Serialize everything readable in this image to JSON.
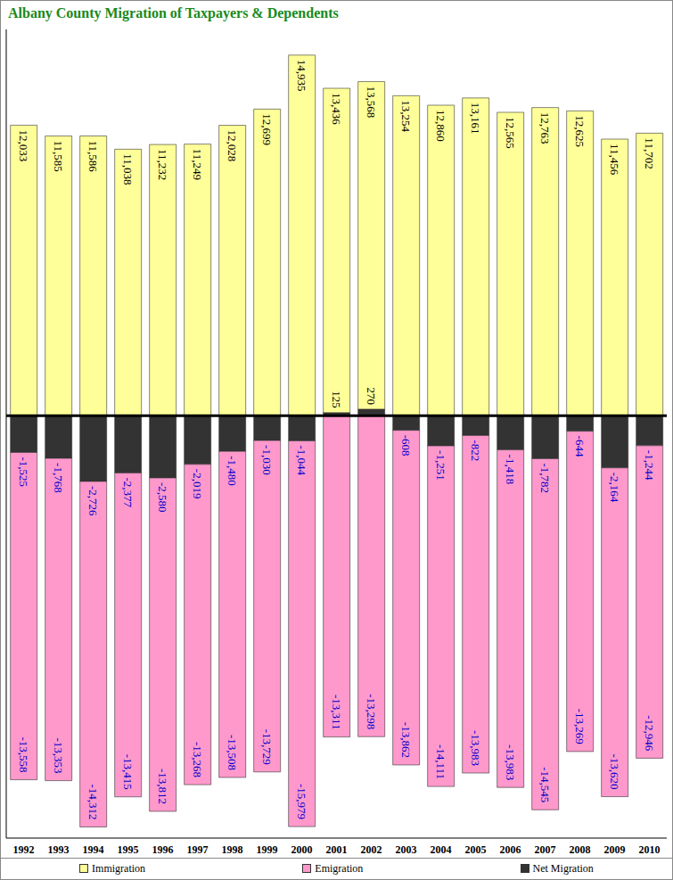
{
  "chart_data": {
    "type": "bar",
    "title": "Albany County Migration of Taxpayers & Dependents",
    "categories": [
      "1992",
      "1993",
      "1994",
      "1995",
      "1996",
      "1997",
      "1998",
      "1999",
      "2000",
      "2001",
      "2002",
      "2003",
      "2004",
      "2005",
      "2006",
      "2007",
      "2008",
      "2009",
      "2010"
    ],
    "series": [
      {
        "name": "Immigration",
        "color": "#ffff99",
        "values": [
          12033,
          11585,
          11586,
          11038,
          11232,
          11249,
          12028,
          12699,
          14935,
          13436,
          13568,
          13254,
          12860,
          13161,
          12565,
          12763,
          12625,
          11456,
          11702
        ],
        "value_labels": [
          "12,033",
          "11,585",
          "11,586",
          "11,038",
          "11,232",
          "11,249",
          "12,028",
          "12,699",
          "14,935",
          "13,436",
          "13,568",
          "13,254",
          "12,860",
          "13,161",
          "12,565",
          "12,763",
          "12,625",
          "11,456",
          "11,702"
        ]
      },
      {
        "name": "Emigration",
        "color": "#ff99cc",
        "values": [
          -13558,
          -13353,
          -14312,
          -13415,
          -13812,
          -13268,
          -13508,
          -13729,
          -15979,
          -13311,
          -13298,
          -13862,
          -14111,
          -13983,
          -13983,
          -14545,
          -13269,
          -13620,
          -12946
        ],
        "value_labels": [
          "-13,558",
          "-13,353",
          "-14,312",
          "-13,415",
          "-13,812",
          "-13,268",
          "-13,508",
          "-13,729",
          "-15,979",
          "-13,311",
          "-13,298",
          "-13,862",
          "-14,111",
          "-13,983",
          "-13,983",
          "-14,545",
          "-13,269",
          "-13,620",
          "-12,946"
        ]
      },
      {
        "name": "Net Migration",
        "color": "#333333",
        "values": [
          -1525,
          -1768,
          -2726,
          -2377,
          -2580,
          -2019,
          -1480,
          -1030,
          -1044,
          125,
          270,
          -608,
          -1251,
          -822,
          -1418,
          -1782,
          -644,
          -2164,
          -1244
        ],
        "value_labels": [
          "-1,525",
          "-1,768",
          "-2,726",
          "-2,377",
          "-2,580",
          "-2,019",
          "-1,480",
          "-1,030",
          "-1,044",
          "125",
          "270",
          "-608",
          "-1,251",
          "-822",
          "-1,418",
          "-1,782",
          "-644",
          "-2,164",
          "-1,244"
        ]
      }
    ],
    "ylim": [
      -17500,
      16000
    ],
    "yticks": [
      0
    ],
    "stacked": true,
    "data_labels": true,
    "grid": false,
    "legend": "bottom",
    "tick_labels": "x"
  }
}
